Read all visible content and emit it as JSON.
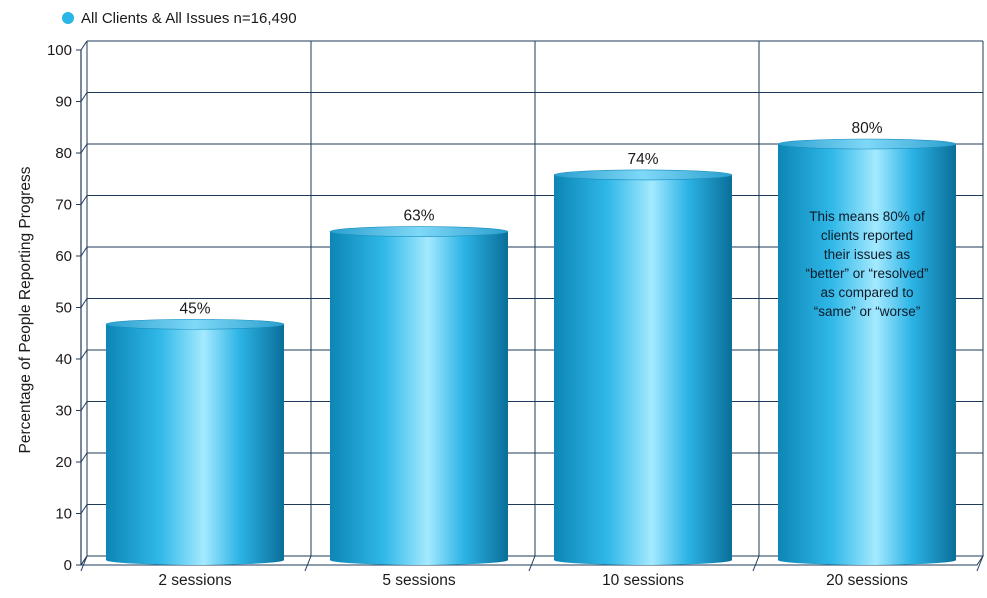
{
  "chart_data": {
    "type": "bar",
    "categories": [
      "2 sessions",
      "5 sessions",
      "10 sessions",
      "20 sessions"
    ],
    "series": [
      {
        "name": "All Clients & All Issues n=16,490",
        "values": [
          45,
          63,
          74,
          80
        ]
      }
    ],
    "data_labels": [
      "45%",
      "63%",
      "74%",
      "80%"
    ],
    "ylabel": "Percentage of People Reporting Progress",
    "xlabel": "",
    "ylim": [
      0,
      100
    ],
    "yticks": [
      0,
      10,
      20,
      30,
      40,
      50,
      60,
      70,
      80,
      90,
      100
    ],
    "grid": true,
    "legend_position": "top-left",
    "bar_style": "cylinder",
    "annotation": {
      "category": "20 sessions",
      "lines": [
        "This means 80% of",
        "clients reported",
        "their issues as",
        "“better” or “resolved”",
        "as compared to",
        "“same” or “worse”"
      ]
    },
    "colors": {
      "bar": "#29B6E6",
      "bar_highlight": "#9CE6FF",
      "bar_shadow": "#0A7AA6",
      "legend_marker": "#29B6E6",
      "grid": "#1F3A5A",
      "frame": "#1F3A5A"
    }
  }
}
